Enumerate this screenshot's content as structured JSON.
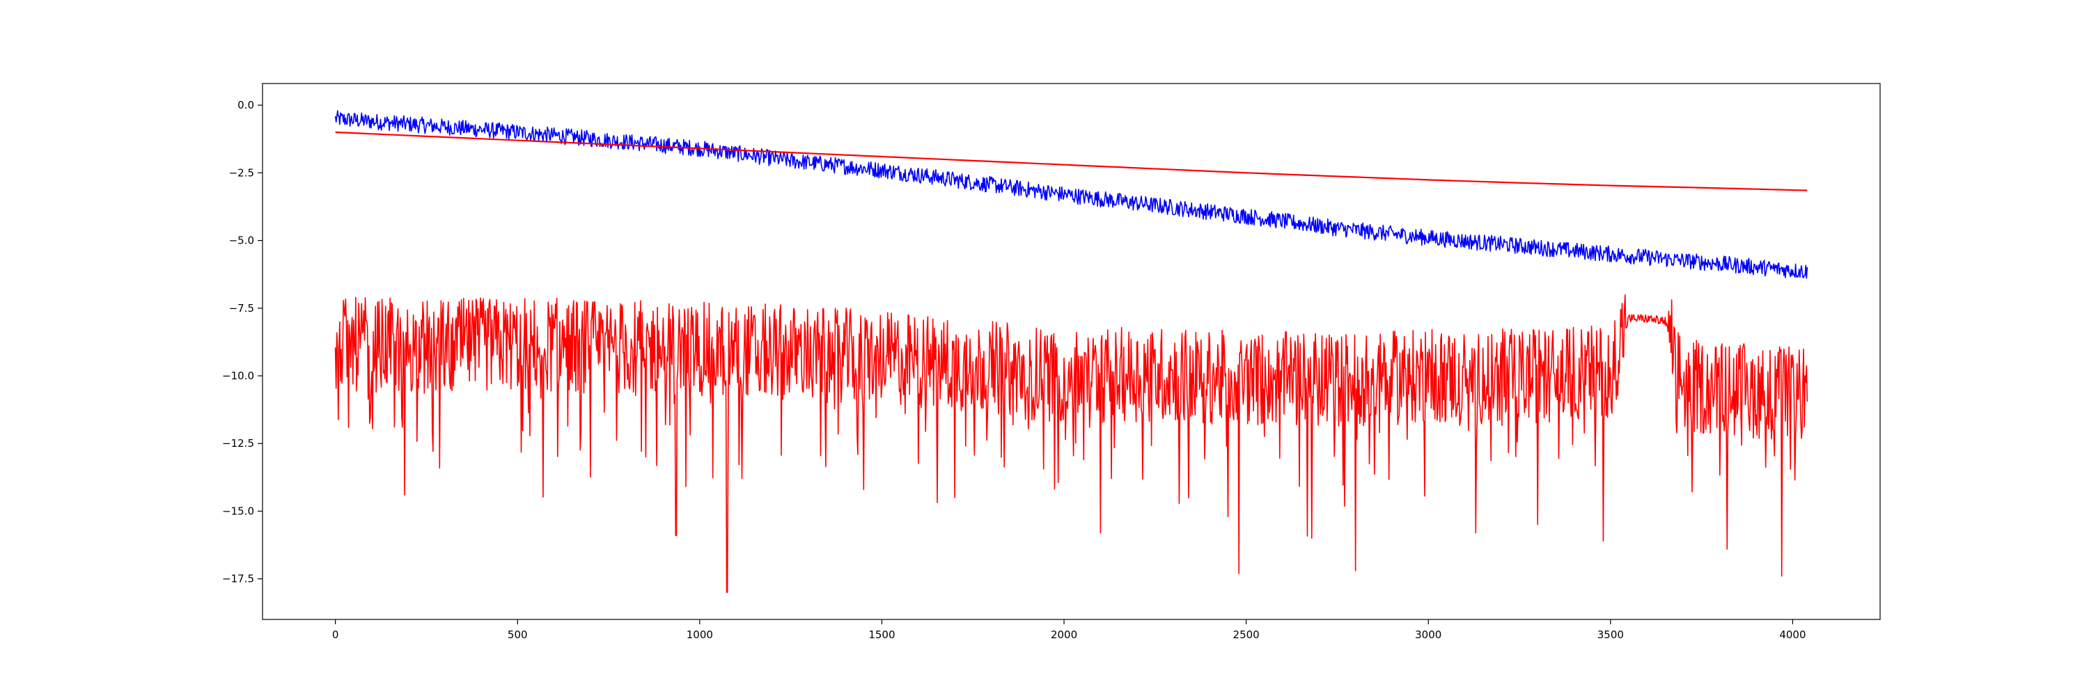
{
  "chart_data": {
    "type": "line",
    "title": "",
    "xlabel": "",
    "ylabel": "",
    "xlim": [
      -200,
      4240
    ],
    "ylim": [
      -19.0,
      0.8
    ],
    "grid": false,
    "legend": "none",
    "x_ticks": [
      0,
      500,
      1000,
      1500,
      2000,
      2500,
      3000,
      3500,
      4000
    ],
    "x_tick_labels": [
      "0",
      "500",
      "1000",
      "1500",
      "2000",
      "2500",
      "3000",
      "3500",
      "4000"
    ],
    "y_ticks": [
      0.0,
      -2.5,
      -5.0,
      -7.5,
      -10.0,
      -12.5,
      -15.0,
      -17.5
    ],
    "y_tick_labels": [
      "0.0",
      "−2.5",
      "−5.0",
      "−7.5",
      "−10.0",
      "−12.5",
      "−15.0",
      "−17.5"
    ],
    "series": [
      {
        "color": "#0000ff",
        "style": "noisy",
        "x": [
          0,
          250,
          500,
          750,
          1000,
          1250,
          1500,
          1750,
          2000,
          2250,
          2500,
          2750,
          3000,
          3250,
          3500,
          3750,
          4040
        ],
        "y": [
          -0.5,
          -0.75,
          -1.0,
          -1.3,
          -1.6,
          -2.05,
          -2.4,
          -2.85,
          -3.3,
          -3.7,
          -4.1,
          -4.55,
          -4.9,
          -5.2,
          -5.5,
          -5.8,
          -6.15
        ],
        "noise": 0.3
      },
      {
        "color": "#ff0000",
        "style": "smooth",
        "x": [
          0,
          250,
          500,
          750,
          1000,
          1250,
          1500,
          1750,
          2000,
          2250,
          2500,
          2750,
          3000,
          3250,
          3500,
          3750,
          4040
        ],
        "y": [
          -1.0,
          -1.15,
          -1.3,
          -1.45,
          -1.6,
          -1.75,
          -1.9,
          -2.05,
          -2.2,
          -2.35,
          -2.5,
          -2.63,
          -2.76,
          -2.87,
          -2.97,
          -3.05,
          -3.15
        ]
      },
      {
        "color": "#ff0000",
        "style": "noisy",
        "x": [
          0,
          250,
          500,
          750,
          1000,
          1250,
          1500,
          1750,
          2000,
          2250,
          2500,
          2750,
          3000,
          3250,
          3500,
          3550,
          3600,
          3650,
          3700,
          3750,
          4040
        ],
        "y": [
          -9.0,
          -9.1,
          -9.0,
          -9.1,
          -9.2,
          -9.3,
          -9.5,
          -9.8,
          -10.2,
          -10.1,
          -10.3,
          -10.3,
          -10.2,
          -10.2,
          -10.0,
          -7.9,
          -7.9,
          -8.0,
          -10.6,
          -10.6,
          -10.9
        ],
        "noise": 1.6,
        "spikes": [
          {
            "x": 190,
            "y": -14.4
          },
          {
            "x": 935,
            "y": -15.9
          },
          {
            "x": 1075,
            "y": -18.0
          },
          {
            "x": 1450,
            "y": -14.2
          },
          {
            "x": 1700,
            "y": -14.5
          },
          {
            "x": 2100,
            "y": -15.8
          },
          {
            "x": 2450,
            "y": -15.2
          },
          {
            "x": 2480,
            "y": -17.3
          },
          {
            "x": 2680,
            "y": -16.0
          },
          {
            "x": 2800,
            "y": -17.2
          },
          {
            "x": 3130,
            "y": -15.8
          },
          {
            "x": 3480,
            "y": -16.1
          },
          {
            "x": 3820,
            "y": -16.4
          },
          {
            "x": 3970,
            "y": -17.4
          }
        ]
      }
    ]
  }
}
